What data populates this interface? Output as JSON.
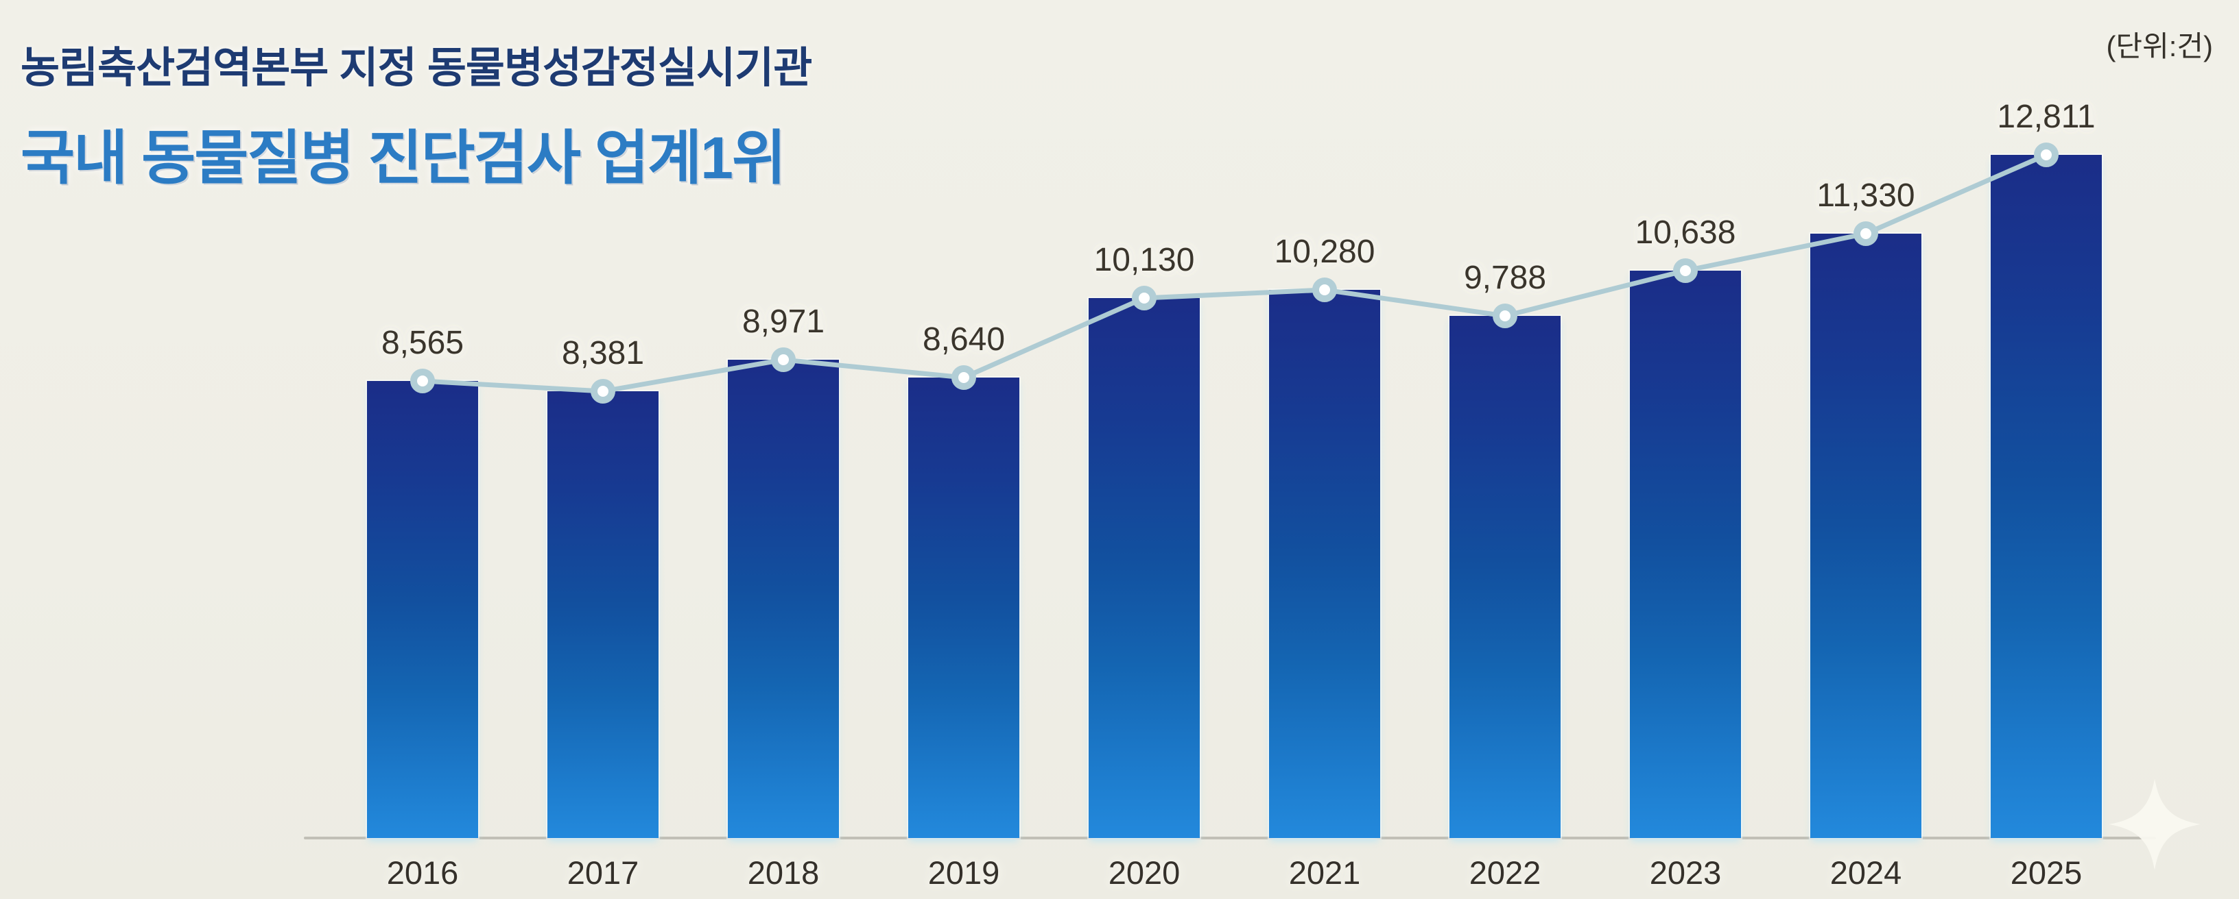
{
  "header": {
    "subtitle": "농림축산검역본부 지정 동물병성감정실시기관",
    "title": "국내 동물질병 진단검사 업계1위"
  },
  "unit_label": "(단위:건)",
  "chart_data": {
    "type": "bar",
    "title": "국내 동물질병 진단검사 업계1위",
    "subtitle": "농림축산검역본부 지정 동물병성감정실시기관",
    "unit": "건",
    "categories": [
      "2016",
      "2017",
      "2018",
      "2019",
      "2020",
      "2021",
      "2022",
      "2023",
      "2024",
      "2025"
    ],
    "values": [
      8565,
      8381,
      8971,
      8640,
      10130,
      10280,
      9788,
      10638,
      11330,
      12811
    ],
    "data_labels": [
      "8,565",
      "8,381",
      "8,971",
      "8,640",
      "10,130",
      "10,280",
      "9,788",
      "10,638",
      "11,330",
      "12,811"
    ],
    "ylim": [
      0,
      13500
    ],
    "grid": false,
    "legend": "none",
    "overlay_line": "trend line with circular markers at each bar top",
    "colors": {
      "bar_gradient_top": "#1b2d88",
      "bar_gradient_bottom": "#2389dc",
      "trend_line": "#aecbd3",
      "marker_ring": "#b2ced6",
      "marker_fill": "#ffffff",
      "label_text": "#3a352c",
      "baseline": "#b9b7ae",
      "background": "#f0efe7",
      "subtitle_text": "#1e3b72",
      "title_text": "#2c7cc4"
    }
  }
}
